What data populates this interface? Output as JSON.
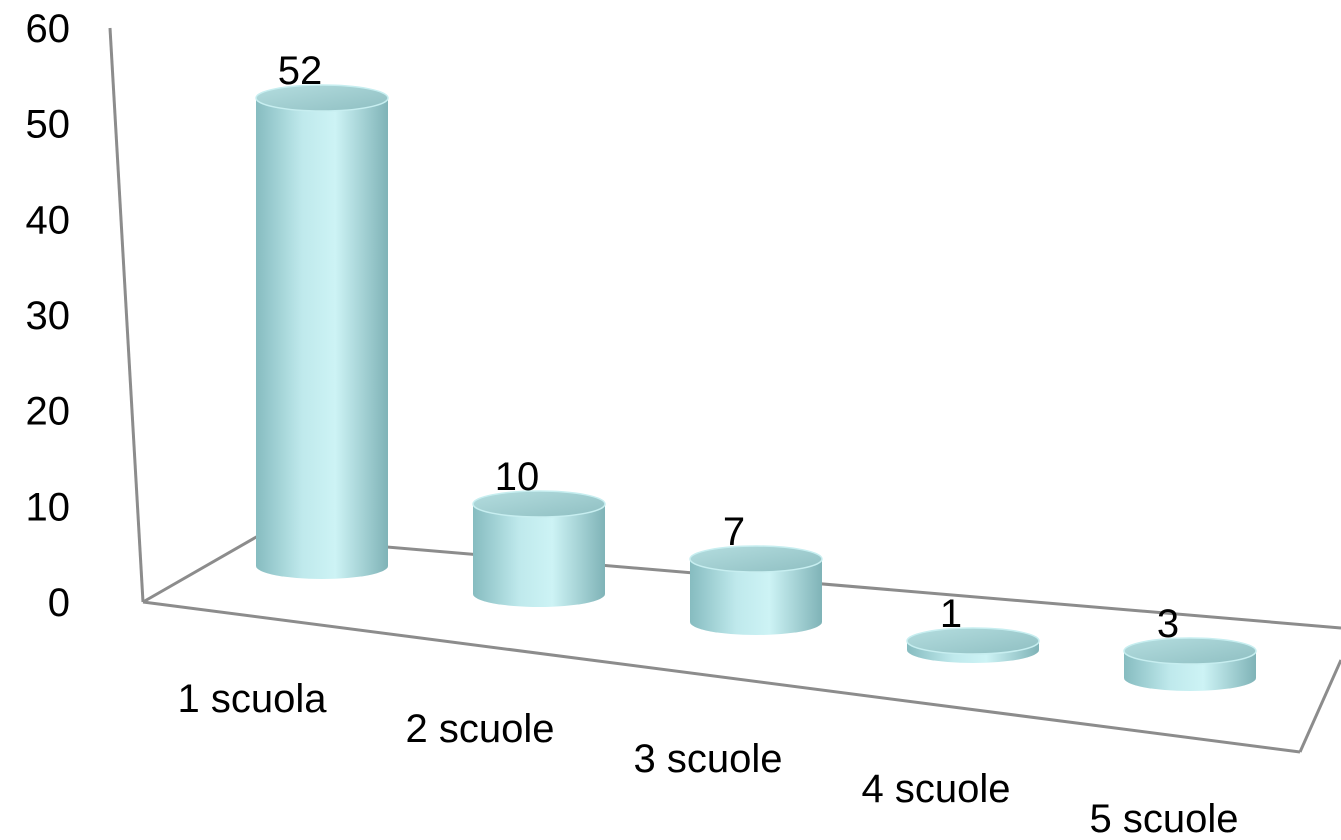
{
  "chart_data": {
    "type": "bar",
    "style": "3d-cylinder",
    "categories": [
      "1 scuola",
      "2 scuole",
      "3 scuole",
      "4 scuole",
      "5 scuole"
    ],
    "values": [
      52,
      10,
      7,
      1,
      3
    ],
    "data_labels": [
      "52",
      "10",
      "7",
      "1",
      "3"
    ],
    "ylim": [
      0,
      60
    ],
    "yticks": [
      "0",
      "10",
      "20",
      "30",
      "40",
      "50",
      "60"
    ],
    "title": "",
    "xlabel": "",
    "ylabel": "",
    "grid": false,
    "legend": "none",
    "colors": {
      "bar_light": "#c9f1f3",
      "bar_mid": "#a9dcdf",
      "bar_dark": "#7fb3b7",
      "bar_top": "#9ec9cb",
      "axis": "#8c8c8c"
    }
  }
}
